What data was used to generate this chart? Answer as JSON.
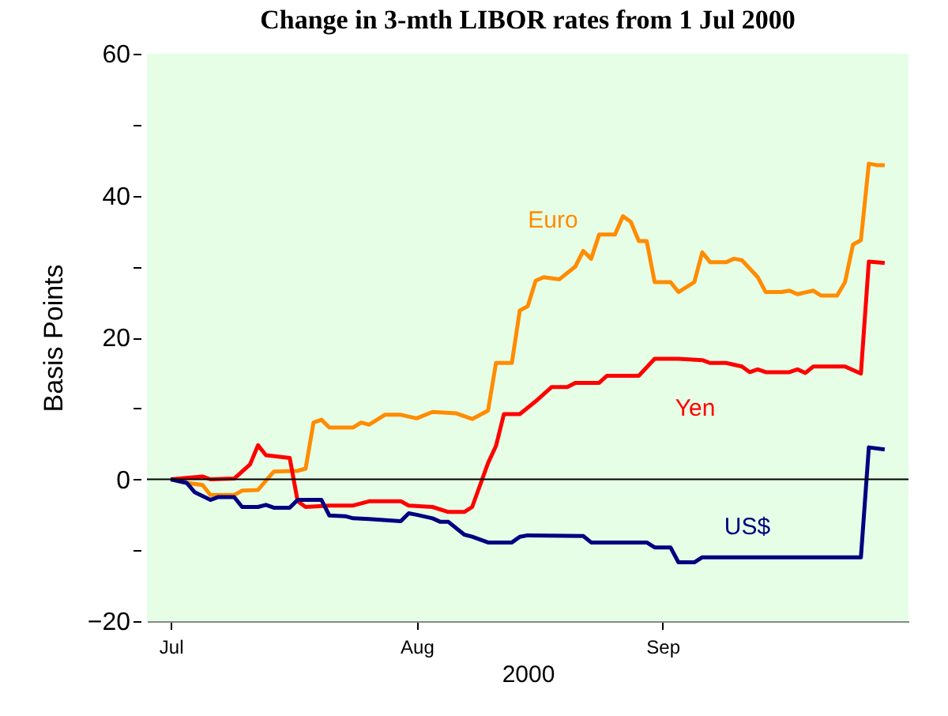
{
  "chart_data": {
    "type": "line",
    "title": "Change in 3-mth LIBOR rates from 1 Jul 2000",
    "xlabel": "2000",
    "ylabel": "Basis Points",
    "xlim": [
      "2000-06-28",
      "2000-10-02"
    ],
    "xticks": [
      {
        "value": "2000-07-01",
        "label": "Jul"
      },
      {
        "value": "2000-08-01",
        "label": "Aug"
      },
      {
        "value": "2000-09-01",
        "label": "Sep"
      }
    ],
    "ylim": [
      -20,
      60
    ],
    "yticks": [
      -20,
      {
        "value": -10,
        "label": null
      },
      0,
      {
        "value": 10,
        "label": null
      },
      20,
      {
        "value": 30,
        "label": null
      },
      40,
      {
        "value": 50,
        "label": null
      },
      60
    ],
    "grid": false,
    "legend": false,
    "marker": "none",
    "line_style": "solid",
    "ref_lines": [
      {
        "axis": "y",
        "value": 0,
        "color": "#000000"
      }
    ],
    "series": [
      {
        "name": "Euro",
        "color": "#ff8c00",
        "x": [
          "2000-07-01",
          "2000-07-03",
          "2000-07-05",
          "2000-07-06",
          "2000-07-09",
          "2000-07-10",
          "2000-07-12",
          "2000-07-14",
          "2000-07-17",
          "2000-07-18",
          "2000-07-19",
          "2000-07-20",
          "2000-07-21",
          "2000-07-24",
          "2000-07-25",
          "2000-07-26",
          "2000-07-28",
          "2000-07-30",
          "2000-08-01",
          "2000-08-03",
          "2000-08-06",
          "2000-08-08",
          "2000-08-10",
          "2000-08-11",
          "2000-08-13",
          "2000-08-14",
          "2000-08-15",
          "2000-08-16",
          "2000-08-17",
          "2000-08-19",
          "2000-08-21",
          "2000-08-22",
          "2000-08-23",
          "2000-08-24",
          "2000-08-26",
          "2000-08-27",
          "2000-08-28",
          "2000-08-29",
          "2000-08-30",
          "2000-08-31",
          "2000-09-02",
          "2000-09-03",
          "2000-09-05",
          "2000-09-06",
          "2000-09-07",
          "2000-09-09",
          "2000-09-10",
          "2000-09-11",
          "2000-09-13",
          "2000-09-14",
          "2000-09-16",
          "2000-09-17",
          "2000-09-18",
          "2000-09-20",
          "2000-09-21",
          "2000-09-23",
          "2000-09-24",
          "2000-09-25",
          "2000-09-26",
          "2000-09-27",
          "2000-09-28",
          "2000-09-29"
        ],
        "values": [
          0,
          -0.5,
          -0.8,
          -2.2,
          -2.2,
          -1.6,
          -1.5,
          1.1,
          1.2,
          1.5,
          8.0,
          8.4,
          7.3,
          7.3,
          8.0,
          7.7,
          9.1,
          9.1,
          8.6,
          9.5,
          9.3,
          8.5,
          9.7,
          16.4,
          16.4,
          23.8,
          24.4,
          28.0,
          28.5,
          28.2,
          30.0,
          32.2,
          31.1,
          34.5,
          34.5,
          37.1,
          36.3,
          33.6,
          33.6,
          27.8,
          27.8,
          26.4,
          27.8,
          32.0,
          30.6,
          30.6,
          31.1,
          30.9,
          28.5,
          26.4,
          26.4,
          26.6,
          26.1,
          26.6,
          25.9,
          25.9,
          27.8,
          33.1,
          33.7,
          44.5,
          44.3,
          44.3
        ]
      },
      {
        "name": "Yen",
        "color": "#ff0000",
        "x": [
          "2000-07-01",
          "2000-07-05",
          "2000-07-06",
          "2000-07-09",
          "2000-07-11",
          "2000-07-12",
          "2000-07-13",
          "2000-07-16",
          "2000-07-17",
          "2000-07-18",
          "2000-07-21",
          "2000-07-24",
          "2000-07-26",
          "2000-07-30",
          "2000-07-31",
          "2000-08-03",
          "2000-08-05",
          "2000-08-07",
          "2000-08-08",
          "2000-08-10",
          "2000-08-11",
          "2000-08-12",
          "2000-08-14",
          "2000-08-16",
          "2000-08-18",
          "2000-08-20",
          "2000-08-21",
          "2000-08-24",
          "2000-08-25",
          "2000-08-29",
          "2000-08-31",
          "2000-09-03",
          "2000-09-06",
          "2000-09-07",
          "2000-09-09",
          "2000-09-11",
          "2000-09-12",
          "2000-09-13",
          "2000-09-14",
          "2000-09-17",
          "2000-09-18",
          "2000-09-19",
          "2000-09-20",
          "2000-09-24",
          "2000-09-26",
          "2000-09-27",
          "2000-09-29"
        ],
        "values": [
          0,
          0.4,
          0,
          0.1,
          2.1,
          4.8,
          3.4,
          3.0,
          -3.1,
          -3.9,
          -3.7,
          -3.7,
          -3.1,
          -3.1,
          -3.7,
          -3.9,
          -4.6,
          -4.6,
          -3.9,
          2.3,
          4.7,
          9.2,
          9.2,
          11.0,
          13.0,
          13.0,
          13.6,
          13.6,
          14.6,
          14.6,
          17.0,
          17.0,
          16.8,
          16.4,
          16.4,
          15.9,
          15.1,
          15.5,
          15.1,
          15.1,
          15.5,
          15.0,
          15.9,
          15.9,
          14.9,
          30.7,
          30.5
        ]
      },
      {
        "name": "US$",
        "color": "#000080",
        "x": [
          "2000-07-01",
          "2000-07-03",
          "2000-07-04",
          "2000-07-06",
          "2000-07-07",
          "2000-07-09",
          "2000-07-10",
          "2000-07-12",
          "2000-07-13",
          "2000-07-14",
          "2000-07-16",
          "2000-07-17",
          "2000-07-20",
          "2000-07-21",
          "2000-07-23",
          "2000-07-24",
          "2000-07-26",
          "2000-07-30",
          "2000-07-31",
          "2000-08-01",
          "2000-08-03",
          "2000-08-04",
          "2000-08-05",
          "2000-08-07",
          "2000-08-08",
          "2000-08-10",
          "2000-08-13",
          "2000-08-14",
          "2000-08-15",
          "2000-08-22",
          "2000-08-23",
          "2000-08-30",
          "2000-08-31",
          "2000-09-02",
          "2000-09-03",
          "2000-09-05",
          "2000-09-06",
          "2000-09-26",
          "2000-09-27",
          "2000-09-29"
        ],
        "values": [
          0,
          -0.5,
          -1.8,
          -2.9,
          -2.5,
          -2.5,
          -3.9,
          -3.9,
          -3.6,
          -4.0,
          -4.0,
          -2.9,
          -2.9,
          -5.1,
          -5.2,
          -5.5,
          -5.6,
          -5.9,
          -4.8,
          -5.0,
          -5.5,
          -6.0,
          -6.0,
          -7.8,
          -8.1,
          -8.9,
          -8.9,
          -8.1,
          -7.9,
          -8.0,
          -8.9,
          -8.9,
          -9.6,
          -9.6,
          -11.7,
          -11.7,
          -11.0,
          -11.0,
          4.5,
          4.2
        ]
      }
    ]
  }
}
